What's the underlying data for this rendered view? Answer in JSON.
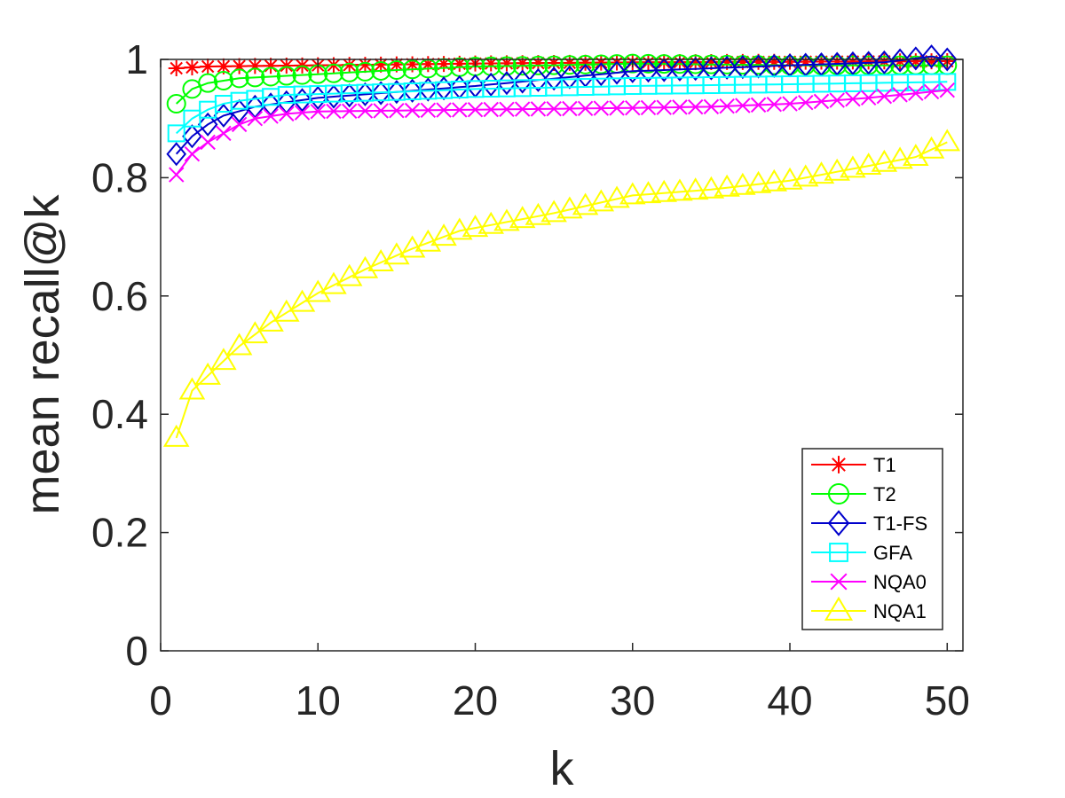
{
  "chart_data": {
    "type": "line",
    "xlabel": "k",
    "ylabel": "mean recall@k",
    "xlim": [
      0,
      51
    ],
    "ylim": [
      0,
      1
    ],
    "xticks": [
      0,
      10,
      20,
      30,
      40,
      50
    ],
    "xtick_labels": [
      "0",
      "10",
      "20",
      "30",
      "40",
      "50"
    ],
    "yticks": [
      0,
      0.2,
      0.4,
      0.6,
      0.8,
      1
    ],
    "ytick_labels": [
      "0",
      "0.2",
      "0.4",
      "0.6",
      "0.8",
      "1"
    ],
    "legend_position": "bottom-right",
    "x_range": [
      1,
      50
    ],
    "series": [
      {
        "name": "T1",
        "color": "#ff0000",
        "marker": "star",
        "anchors": [
          [
            1,
            0.985
          ],
          [
            3,
            0.988
          ],
          [
            10,
            0.99
          ],
          [
            20,
            0.993
          ],
          [
            30,
            0.995
          ],
          [
            40,
            0.996
          ],
          [
            50,
            0.997
          ]
        ]
      },
      {
        "name": "T2",
        "color": "#00ff00",
        "marker": "circle",
        "anchors": [
          [
            1,
            0.925
          ],
          [
            2,
            0.95
          ],
          [
            3,
            0.96
          ],
          [
            5,
            0.968
          ],
          [
            10,
            0.975
          ],
          [
            15,
            0.982
          ],
          [
            20,
            0.988
          ],
          [
            25,
            0.99
          ],
          [
            30,
            0.993
          ],
          [
            40,
            0.99
          ],
          [
            50,
            0.99
          ]
        ]
      },
      {
        "name": "T1-FS",
        "color": "#0000cc",
        "marker": "diamond",
        "anchors": [
          [
            1,
            0.84
          ],
          [
            2,
            0.87
          ],
          [
            3,
            0.89
          ],
          [
            4,
            0.905
          ],
          [
            6,
            0.92
          ],
          [
            10,
            0.935
          ],
          [
            20,
            0.955
          ],
          [
            30,
            0.98
          ],
          [
            40,
            0.99
          ],
          [
            46,
            0.995
          ],
          [
            49,
            1.005
          ],
          [
            50,
            1.0
          ]
        ]
      },
      {
        "name": "GFA",
        "color": "#00ffff",
        "marker": "square",
        "anchors": [
          [
            1,
            0.875
          ],
          [
            2,
            0.9
          ],
          [
            3,
            0.915
          ],
          [
            4,
            0.925
          ],
          [
            5,
            0.93
          ],
          [
            8,
            0.94
          ],
          [
            15,
            0.945
          ],
          [
            20,
            0.95
          ],
          [
            30,
            0.955
          ],
          [
            40,
            0.958
          ],
          [
            50,
            0.962
          ]
        ]
      },
      {
        "name": "NQA0",
        "color": "#ff00ff",
        "marker": "x",
        "anchors": [
          [
            1,
            0.805
          ],
          [
            2,
            0.84
          ],
          [
            3,
            0.86
          ],
          [
            4,
            0.875
          ],
          [
            5,
            0.89
          ],
          [
            6,
            0.9
          ],
          [
            8,
            0.908
          ],
          [
            10,
            0.912
          ],
          [
            20,
            0.915
          ],
          [
            30,
            0.918
          ],
          [
            35,
            0.92
          ],
          [
            40,
            0.925
          ],
          [
            45,
            0.935
          ],
          [
            50,
            0.948
          ]
        ]
      },
      {
        "name": "NQA1",
        "color": "#ffff00",
        "marker": "triangle",
        "anchors": [
          [
            1,
            0.36
          ],
          [
            2,
            0.44
          ],
          [
            3,
            0.465
          ],
          [
            5,
            0.515
          ],
          [
            7,
            0.555
          ],
          [
            10,
            0.605
          ],
          [
            13,
            0.645
          ],
          [
            16,
            0.68
          ],
          [
            19,
            0.71
          ],
          [
            22,
            0.725
          ],
          [
            25,
            0.74
          ],
          [
            30,
            0.77
          ],
          [
            35,
            0.78
          ],
          [
            40,
            0.795
          ],
          [
            45,
            0.82
          ],
          [
            48,
            0.835
          ],
          [
            50,
            0.86
          ]
        ]
      }
    ]
  }
}
